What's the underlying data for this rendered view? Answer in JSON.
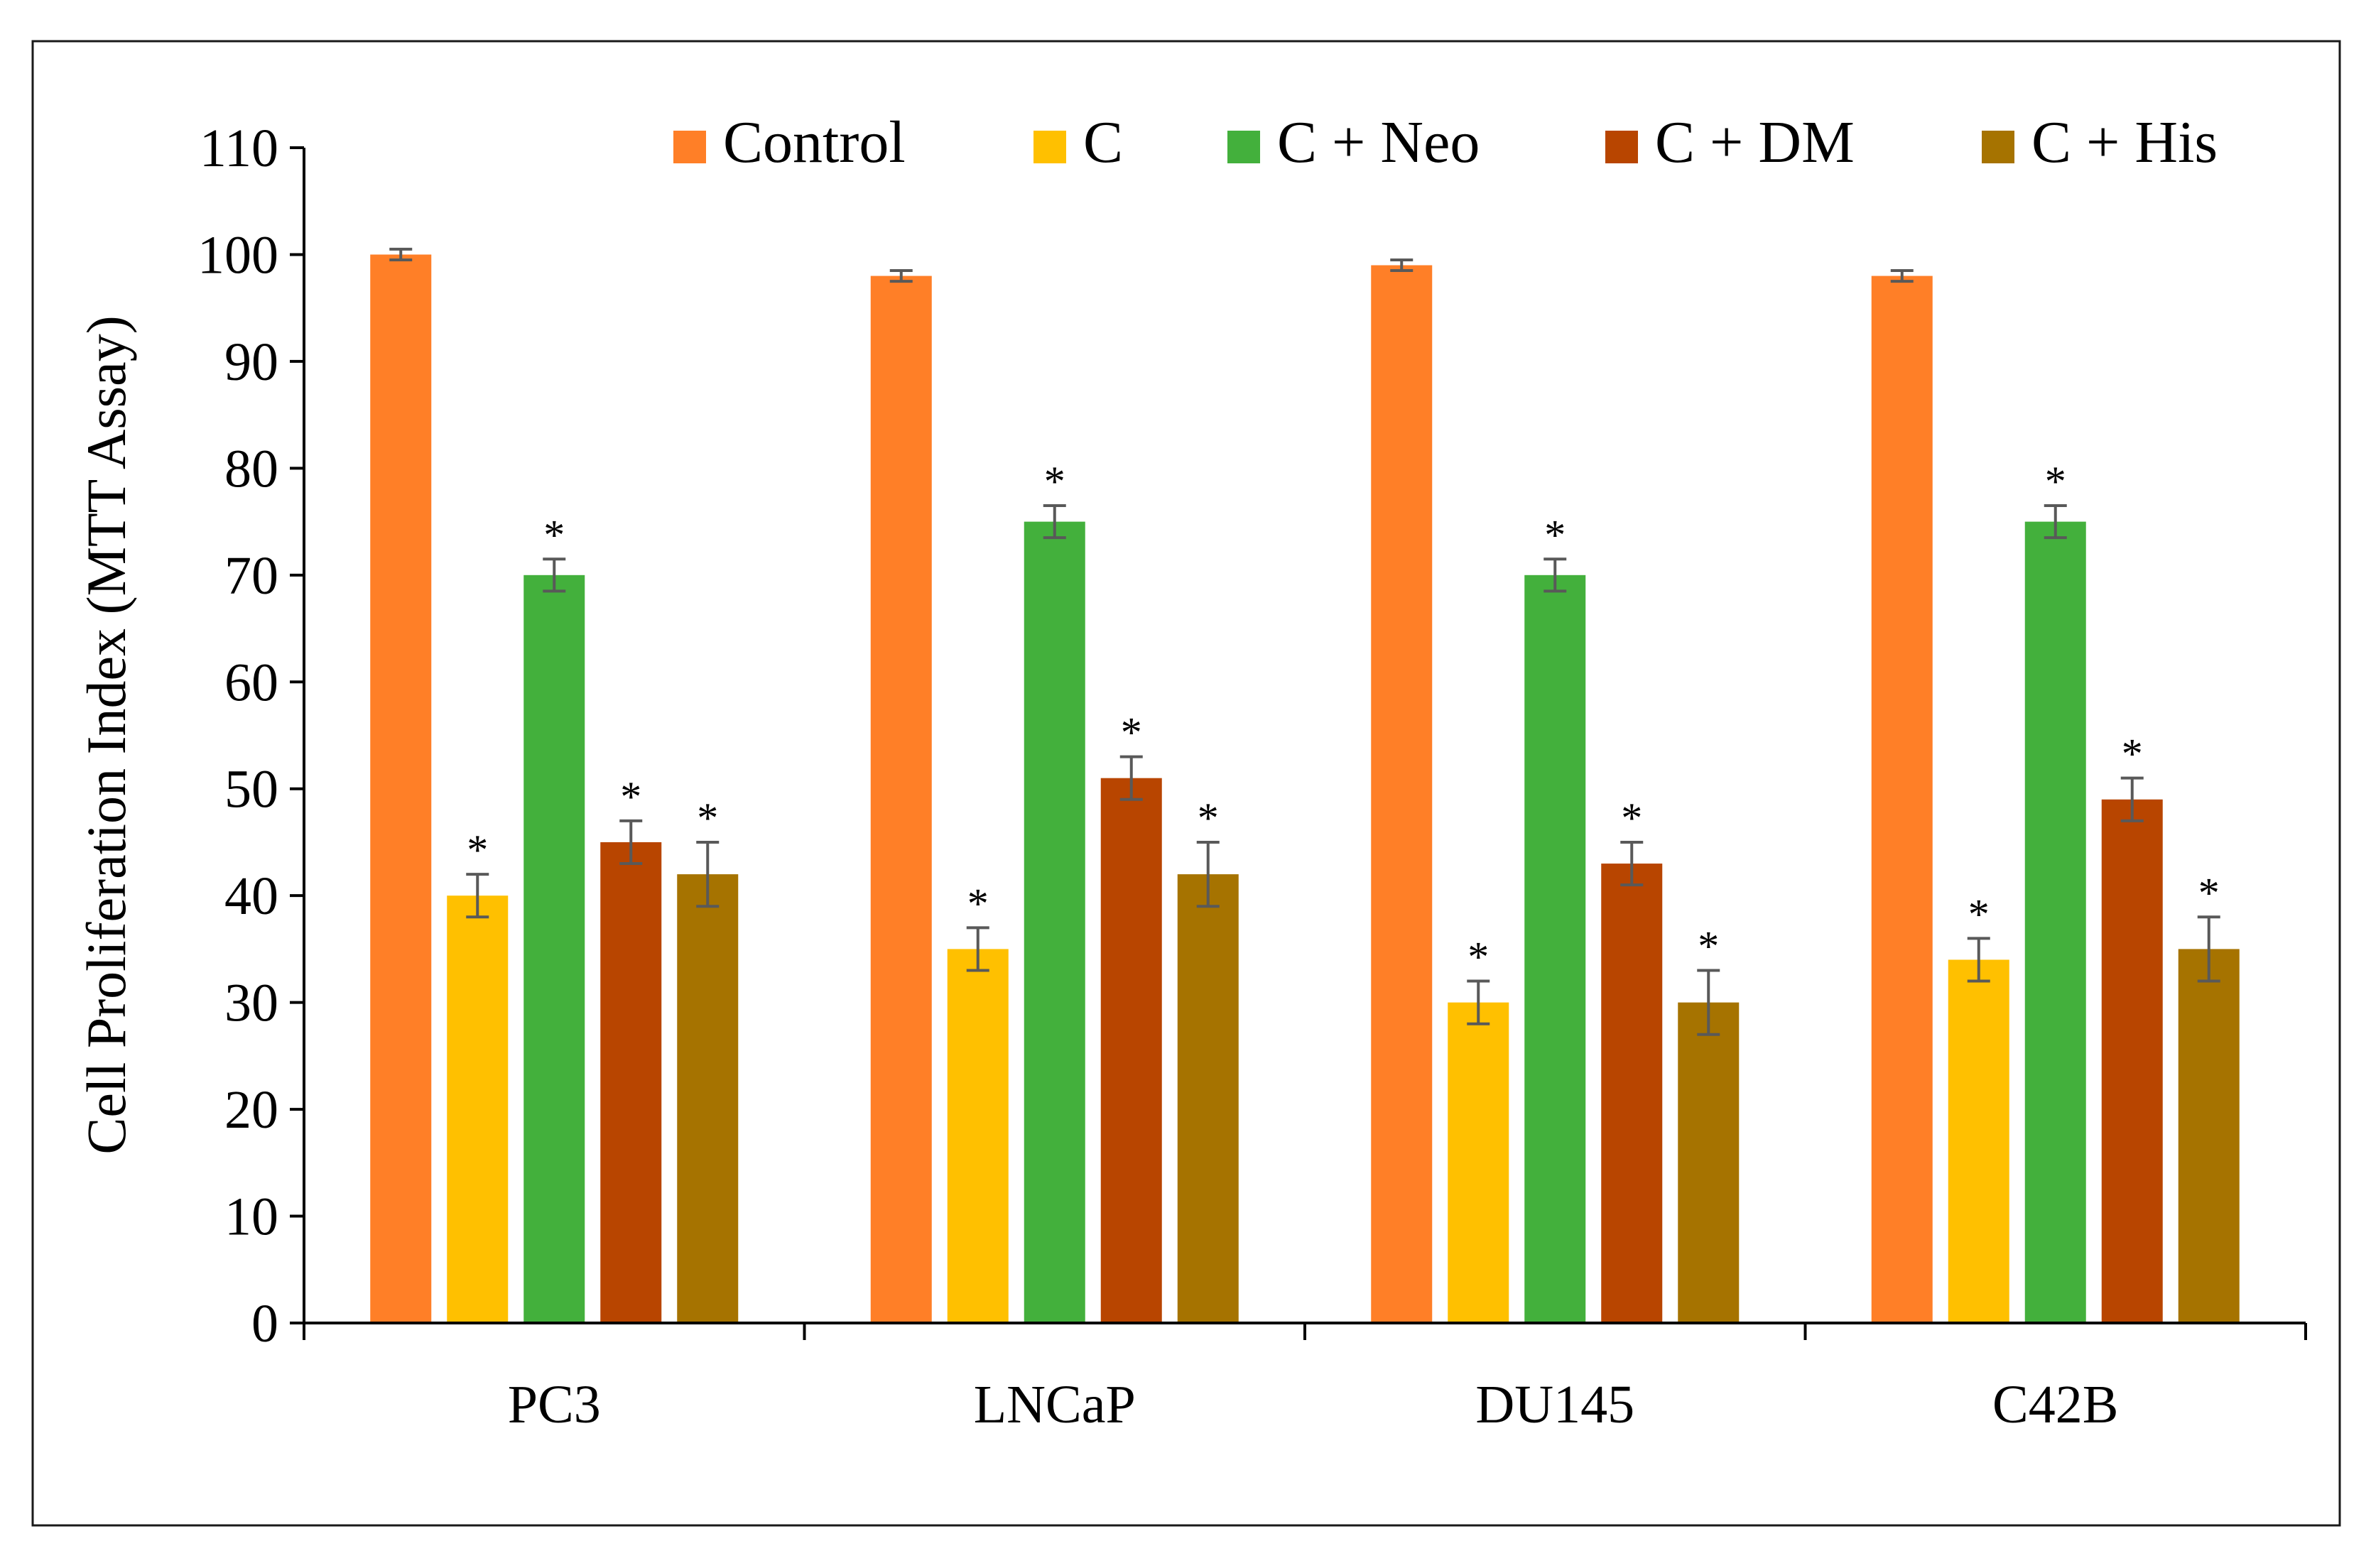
{
  "chart_data": {
    "type": "bar",
    "title": "",
    "xlabel": "",
    "ylabel": "Cell Proliferation Index (MTT Assay)",
    "ylim": [
      0,
      110
    ],
    "yticks": [
      0,
      10,
      20,
      30,
      40,
      50,
      60,
      70,
      80,
      90,
      100,
      110
    ],
    "categories": [
      "PC3",
      "LNCaP",
      "DU145",
      "C42B"
    ],
    "grid": false,
    "legend_position": "top",
    "series": [
      {
        "name": "Control",
        "color": "#FF7F27",
        "values": [
          100,
          98,
          99,
          98
        ],
        "errors": [
          0.5,
          0.5,
          0.5,
          0.5
        ],
        "significant": [
          false,
          false,
          false,
          false
        ]
      },
      {
        "name": "C",
        "color": "#FFC000",
        "values": [
          40,
          35,
          30,
          34
        ],
        "errors": [
          2,
          2,
          2,
          2
        ],
        "significant": [
          true,
          true,
          true,
          true
        ]
      },
      {
        "name": "C + Neo",
        "color": "#43B03C",
        "values": [
          70,
          75,
          70,
          75
        ],
        "errors": [
          1.5,
          1.5,
          1.5,
          1.5
        ],
        "significant": [
          true,
          true,
          true,
          true
        ]
      },
      {
        "name": "C + DM",
        "color": "#B84500",
        "values": [
          45,
          51,
          43,
          49
        ],
        "errors": [
          2,
          2,
          2,
          2
        ],
        "significant": [
          true,
          true,
          true,
          true
        ]
      },
      {
        "name": "C + His",
        "color": "#A67300",
        "values": [
          42,
          42,
          30,
          35
        ],
        "errors": [
          3,
          3,
          3,
          3
        ],
        "significant": [
          true,
          true,
          true,
          true
        ]
      }
    ],
    "significance_marker": "*",
    "error_bar_color": "#595959"
  }
}
